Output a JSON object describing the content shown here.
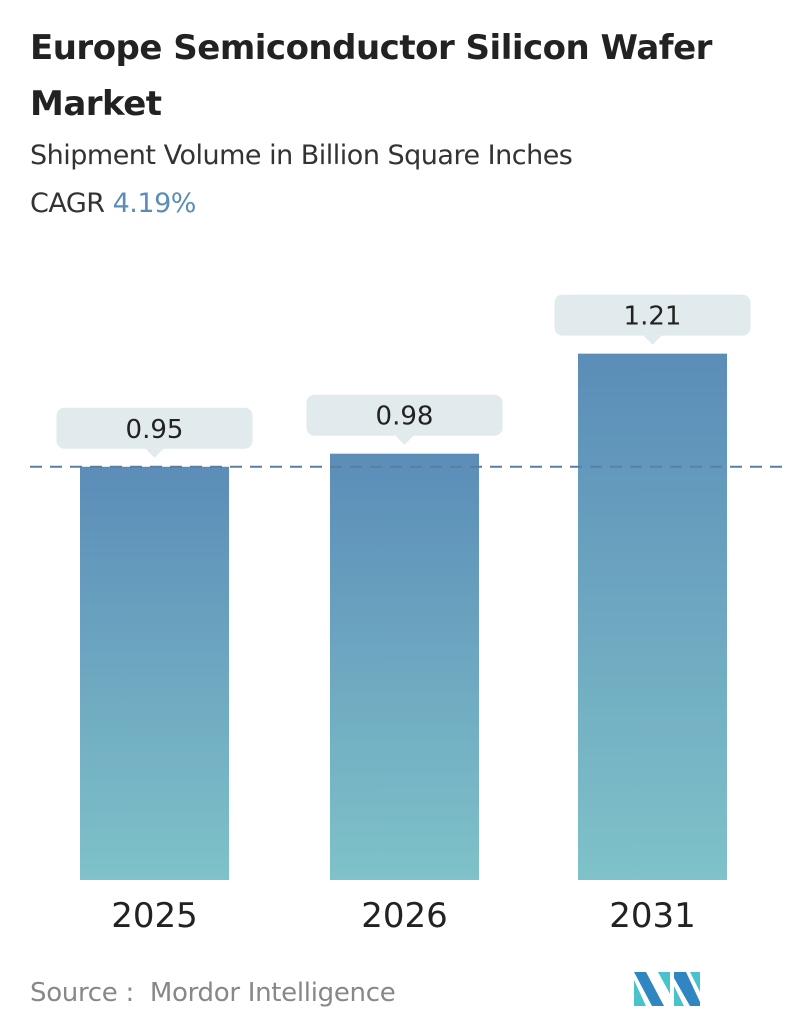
{
  "title": "Europe Semiconductor Silicon Wafer Market",
  "subtitle": "Shipment Volume in Billion Square Inches",
  "cagr_label": "CAGR",
  "cagr_value": "4.19%",
  "source_label": "Source :",
  "source_value": "Mordor Intelligence",
  "logo_text": "Mordor Intelligence",
  "colors": {
    "bar_top": "#5b8db8",
    "bar_bottom": "#7fc2c9",
    "label_box": "#e1eaed",
    "dashed_line": "#5b7fa0",
    "cagr": "#5b8db8"
  },
  "chart_data": {
    "type": "bar",
    "categories": [
      "2025",
      "2026",
      "2031"
    ],
    "values": [
      0.95,
      0.98,
      1.21
    ],
    "data_labels": [
      "0.95",
      "0.98",
      "1.21"
    ],
    "reference_line": 0.95,
    "grid": false,
    "ylim": [
      0,
      1.21
    ]
  }
}
